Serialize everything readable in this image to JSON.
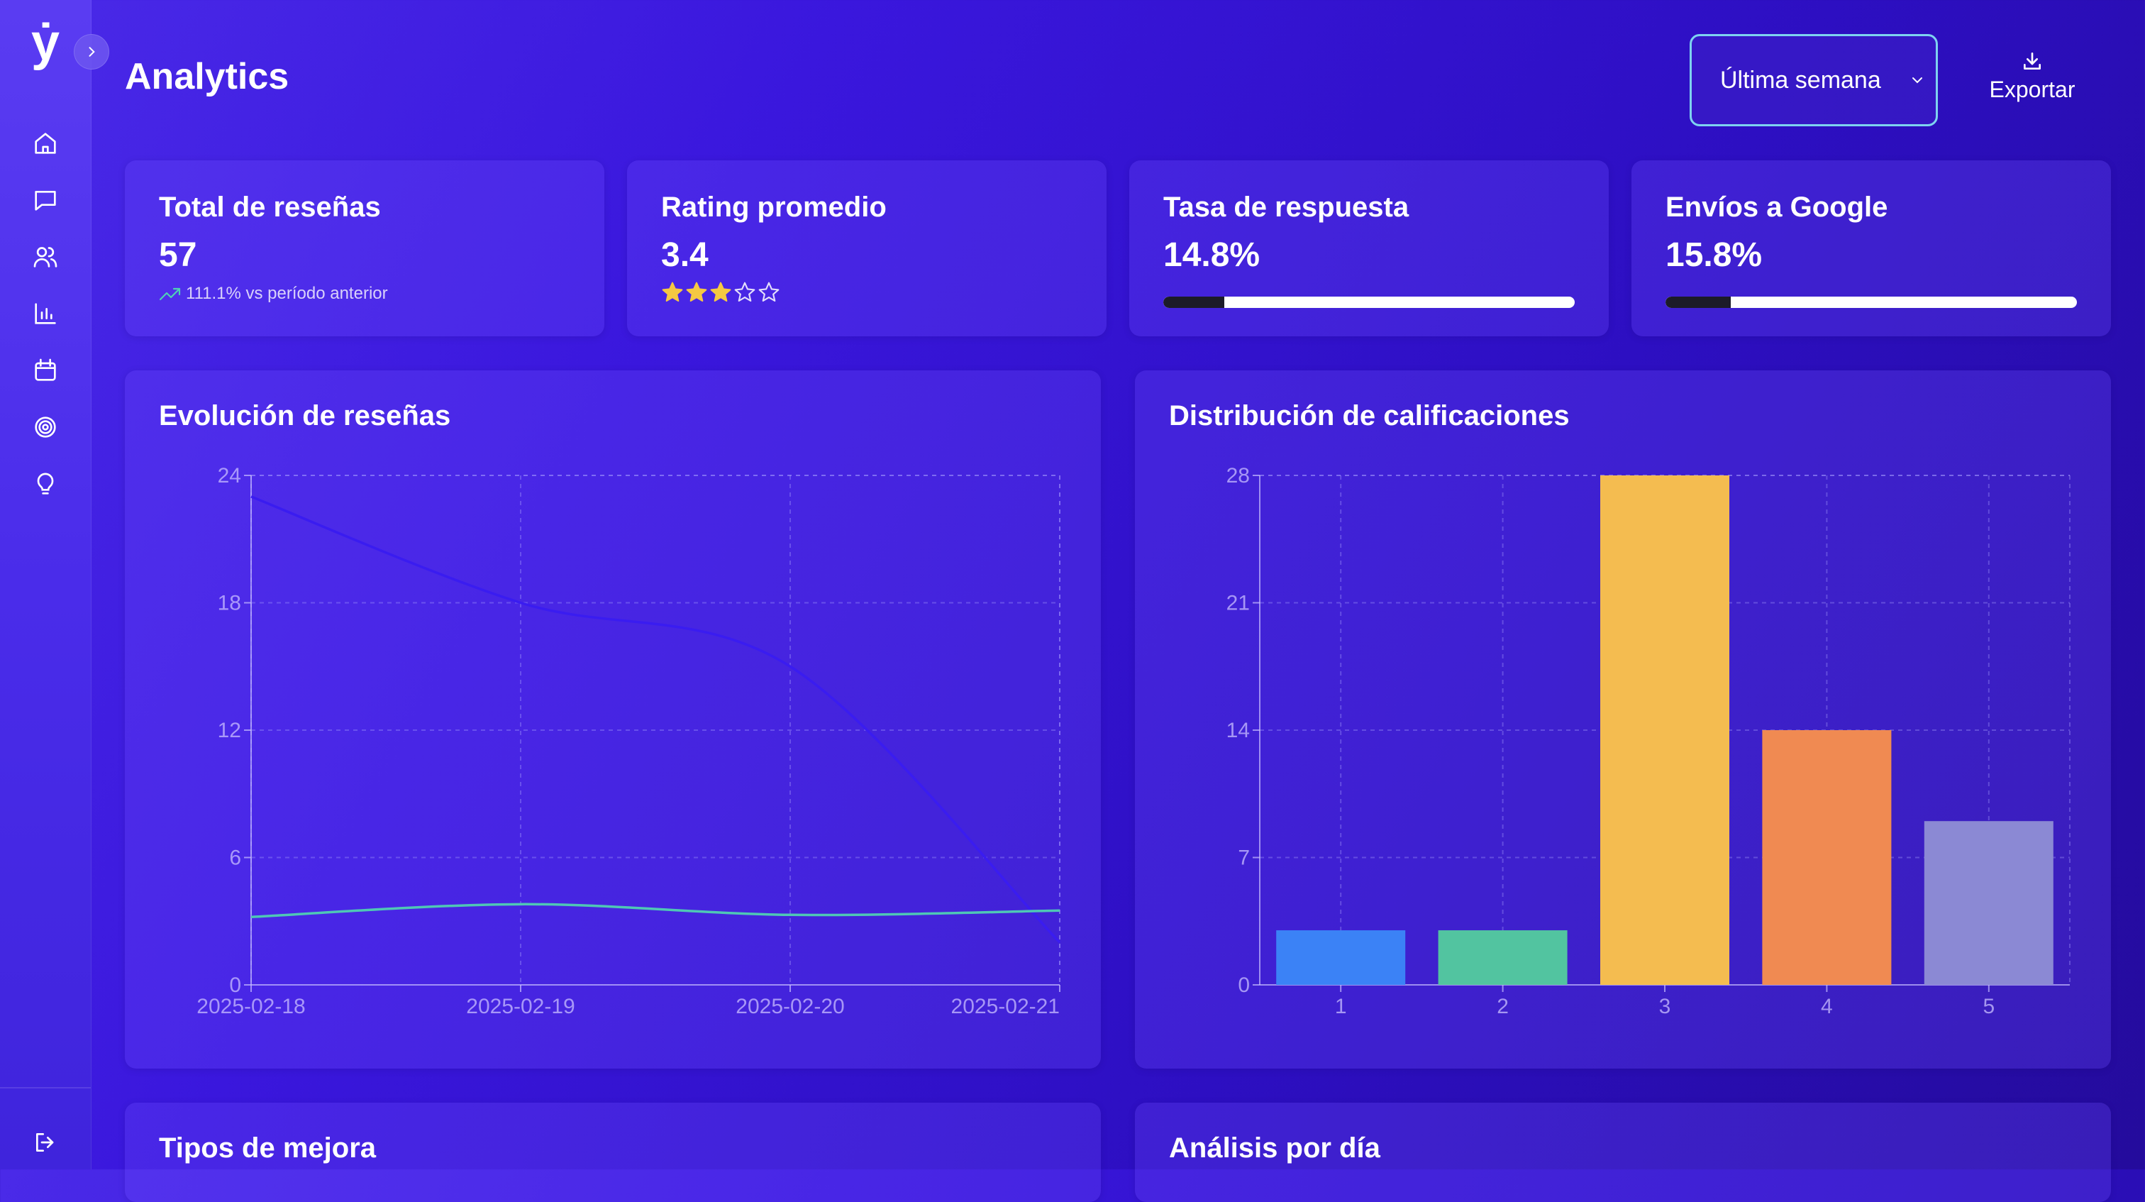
{
  "app": {
    "logo": "ẏ"
  },
  "sidebar": {
    "items": [
      {
        "icon": "home-icon"
      },
      {
        "icon": "message-icon"
      },
      {
        "icon": "users-icon"
      },
      {
        "icon": "bar-chart-icon"
      },
      {
        "icon": "calendar-icon"
      },
      {
        "icon": "target-icon"
      },
      {
        "icon": "lightbulb-icon"
      }
    ],
    "logout_icon": "logout-icon"
  },
  "header": {
    "title": "Analytics",
    "period_select": {
      "value": "Última semana",
      "options": [
        "Última semana"
      ]
    },
    "export_label": "Exportar"
  },
  "stats": {
    "total_reviews": {
      "title": "Total de reseñas",
      "value": "57",
      "trend": "111.1% vs período anterior"
    },
    "average_rating": {
      "title": "Rating promedio",
      "value": "3.4",
      "stars_filled": 3,
      "stars_total": 5
    },
    "response_rate": {
      "title": "Tasa de respuesta",
      "value": "14.8%",
      "progress": 0.148
    },
    "google_submissions": {
      "title": "Envíos a Google",
      "value": "15.8%",
      "progress": 0.158
    }
  },
  "colors": {
    "accent": "#7ed3f0",
    "star": "#f5c842",
    "line_primary": "#3a1cf0",
    "line_secondary": "#4fc7b5",
    "bars": [
      "#3b82f6",
      "#52c4a0",
      "#f4bc50",
      "#f08a52",
      "#8b89d4"
    ]
  },
  "charts": {
    "evolution": {
      "title": "Evolución de reseñas"
    },
    "distribution": {
      "title": "Distribución de calificaciones"
    },
    "improvement_types": {
      "title": "Tipos de mejora"
    },
    "daily_analysis": {
      "title": "Análisis por día"
    }
  },
  "chart_data": [
    {
      "type": "line",
      "title": "Evolución de reseñas",
      "x": [
        "2025-02-18",
        "2025-02-19",
        "2025-02-20",
        "2025-02-21"
      ],
      "series": [
        {
          "values": [
            23,
            18,
            15,
            2
          ]
        },
        {
          "values": [
            3.2,
            3.8,
            3.3,
            3.5
          ]
        }
      ],
      "ylim": [
        0,
        24
      ],
      "yticks": [
        0,
        6,
        12,
        18,
        24
      ],
      "grid": true
    },
    {
      "type": "bar",
      "title": "Distribución de calificaciones",
      "categories": [
        "1",
        "2",
        "3",
        "4",
        "5"
      ],
      "values": [
        3,
        3,
        28,
        14,
        9
      ],
      "ylim": [
        0,
        28
      ],
      "yticks": [
        0,
        7,
        14,
        21,
        28
      ],
      "grid": true
    }
  ]
}
